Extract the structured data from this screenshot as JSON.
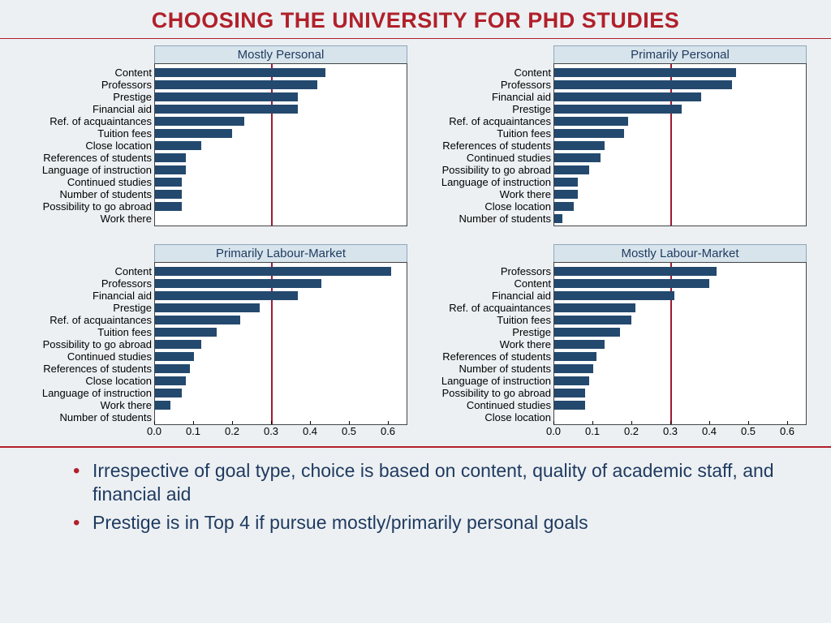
{
  "title": "CHOOSING THE UNIVERSITY FOR PHD STUDIES",
  "title_color": "#b1202a",
  "rule_color": "#b1202a",
  "panel_header_bg": "#d7e4ec",
  "panel_header_color": "#1f3a5f",
  "bar_color": "#24496e",
  "refline_color": "#9e1b32",
  "refline_x": 0.3,
  "plot_bg": "#ffffff",
  "xlim": [
    0,
    0.65
  ],
  "xticks": [
    0.0,
    0.1,
    0.2,
    0.3,
    0.4,
    0.5,
    0.6
  ],
  "xtick_labels": [
    "0.0",
    "0.1",
    "0.2",
    "0.3",
    "0.4",
    "0.5",
    "0.6"
  ],
  "label_fontsize": 13,
  "panels": [
    {
      "title": "Mostly Personal",
      "show_xaxis": false,
      "items": [
        {
          "label": "Content",
          "value": 0.44
        },
        {
          "label": "Professors",
          "value": 0.42
        },
        {
          "label": "Prestige",
          "value": 0.37
        },
        {
          "label": "Financial aid",
          "value": 0.37
        },
        {
          "label": "Ref. of acquaintances",
          "value": 0.23
        },
        {
          "label": "Tuition fees",
          "value": 0.2
        },
        {
          "label": "Close location",
          "value": 0.12
        },
        {
          "label": "References of students",
          "value": 0.08
        },
        {
          "label": "Language of instruction",
          "value": 0.08
        },
        {
          "label": "Continued studies",
          "value": 0.07
        },
        {
          "label": "Number of students",
          "value": 0.07
        },
        {
          "label": "Possibility to go abroad",
          "value": 0.07
        },
        {
          "label": "Work there",
          "value": 0.0
        }
      ]
    },
    {
      "title": "Primarily Personal",
      "show_xaxis": false,
      "items": [
        {
          "label": "Content",
          "value": 0.47
        },
        {
          "label": "Professors",
          "value": 0.46
        },
        {
          "label": "Financial aid",
          "value": 0.38
        },
        {
          "label": "Prestige",
          "value": 0.33
        },
        {
          "label": "Ref. of acquaintances",
          "value": 0.19
        },
        {
          "label": "Tuition fees",
          "value": 0.18
        },
        {
          "label": "References of students",
          "value": 0.13
        },
        {
          "label": "Continued studies",
          "value": 0.12
        },
        {
          "label": "Possibility to go abroad",
          "value": 0.09
        },
        {
          "label": "Language of instruction",
          "value": 0.06
        },
        {
          "label": "Work there",
          "value": 0.06
        },
        {
          "label": "Close location",
          "value": 0.05
        },
        {
          "label": "Number of students",
          "value": 0.02
        }
      ]
    },
    {
      "title": "Primarily Labour-Market",
      "show_xaxis": true,
      "items": [
        {
          "label": "Content",
          "value": 0.61
        },
        {
          "label": "Professors",
          "value": 0.43
        },
        {
          "label": "Financial aid",
          "value": 0.37
        },
        {
          "label": "Prestige",
          "value": 0.27
        },
        {
          "label": "Ref. of acquaintances",
          "value": 0.22
        },
        {
          "label": "Tuition fees",
          "value": 0.16
        },
        {
          "label": "Possibility to go abroad",
          "value": 0.12
        },
        {
          "label": "Continued studies",
          "value": 0.1
        },
        {
          "label": "References of students",
          "value": 0.09
        },
        {
          "label": "Close location",
          "value": 0.08
        },
        {
          "label": "Language of instruction",
          "value": 0.07
        },
        {
          "label": "Work there",
          "value": 0.04
        },
        {
          "label": "Number of students",
          "value": 0.0
        }
      ]
    },
    {
      "title": "Mostly Labour-Market",
      "show_xaxis": true,
      "items": [
        {
          "label": "Professors",
          "value": 0.42
        },
        {
          "label": "Content",
          "value": 0.4
        },
        {
          "label": "Financial aid",
          "value": 0.31
        },
        {
          "label": "Ref. of acquaintances",
          "value": 0.21
        },
        {
          "label": "Tuition fees",
          "value": 0.2
        },
        {
          "label": "Prestige",
          "value": 0.17
        },
        {
          "label": "Work there",
          "value": 0.13
        },
        {
          "label": "References of students",
          "value": 0.11
        },
        {
          "label": "Number of students",
          "value": 0.1
        },
        {
          "label": "Language of instruction",
          "value": 0.09
        },
        {
          "label": "Possibility to go abroad",
          "value": 0.08
        },
        {
          "label": "Continued studies",
          "value": 0.08
        },
        {
          "label": "Close location",
          "value": 0.0
        }
      ]
    }
  ],
  "bullets_color": "#1f3a5f",
  "bullet_marker_color": "#b1202a",
  "bullets": [
    "Irrespective of goal type, choice is based on content, quality of academic staff, and financial aid",
    "Prestige is in Top 4 if pursue mostly/primarily personal goals"
  ]
}
